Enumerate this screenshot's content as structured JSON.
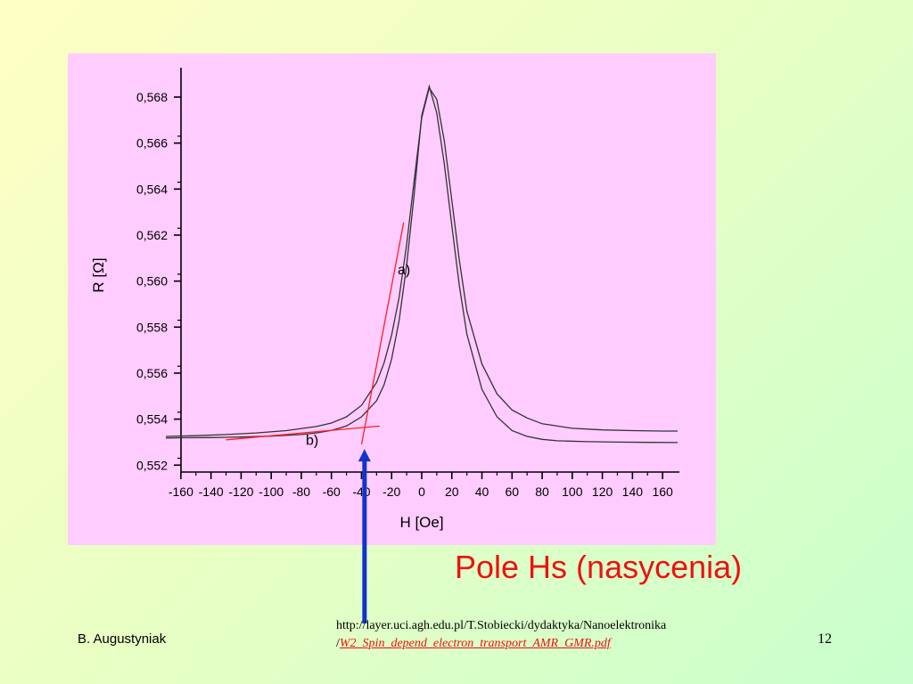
{
  "colors": {
    "panel_bg": "#ffccff",
    "curve": "#333333",
    "fit": "#ff2020",
    "arrow": "#1133cc",
    "title": "#ee1111"
  },
  "chart_data": {
    "type": "line",
    "xlabel": "H [Oe]",
    "ylabel": "R [Ω]",
    "xlim": [
      -170,
      170
    ],
    "ylim": [
      0.5517,
      0.5692
    ],
    "x_ticks": [
      "-160",
      "-140",
      "-120",
      "-100",
      "-80",
      "-60",
      "-40",
      "-20",
      "0",
      "20",
      "40",
      "60",
      "80",
      "100",
      "120",
      "140",
      "160"
    ],
    "y_ticks": [
      "0,552",
      "0,554",
      "0,556",
      "0,558",
      "0,560",
      "0,562",
      "0,564",
      "0,566",
      "0,568"
    ],
    "series": [
      {
        "x": [
          -170,
          -150,
          -130,
          -110,
          -90,
          -70,
          -60,
          -50,
          -40,
          -30,
          -25,
          -20,
          -15,
          -10,
          -5,
          0,
          5,
          10,
          15,
          20,
          25,
          30,
          40,
          50,
          60,
          70,
          80,
          100,
          120,
          140,
          160,
          170
        ],
        "y": [
          0.55325,
          0.55328,
          0.55333,
          0.5534,
          0.5535,
          0.55368,
          0.55383,
          0.5541,
          0.5546,
          0.5556,
          0.55645,
          0.55765,
          0.5593,
          0.5616,
          0.5644,
          0.5671,
          0.5684,
          0.5679,
          0.5661,
          0.5635,
          0.5609,
          0.5587,
          0.5564,
          0.5551,
          0.5544,
          0.55405,
          0.5538,
          0.5536,
          0.55353,
          0.5535,
          0.55348,
          0.55348
        ]
      },
      {
        "x": [
          -170,
          -160,
          -140,
          -120,
          -100,
          -80,
          -70,
          -60,
          -50,
          -40,
          -30,
          -25,
          -20,
          -15,
          -10,
          -5,
          0,
          5,
          10,
          15,
          20,
          25,
          30,
          40,
          50,
          60,
          70,
          80,
          90,
          110,
          130,
          150,
          170
        ],
        "y": [
          0.55318,
          0.55319,
          0.5532,
          0.55322,
          0.55326,
          0.55333,
          0.5534,
          0.55351,
          0.5537,
          0.5541,
          0.5548,
          0.5555,
          0.5566,
          0.5583,
          0.5607,
          0.5638,
          0.5672,
          0.56847,
          0.5673,
          0.5651,
          0.5624,
          0.5598,
          0.5577,
          0.5553,
          0.5541,
          0.5535,
          0.55325,
          0.55312,
          0.55306,
          0.55302,
          0.553,
          0.55299,
          0.55298
        ]
      }
    ],
    "fits": [
      {
        "x": [
          -40,
          -12
        ],
        "y": [
          0.5529,
          0.56255
        ]
      },
      {
        "x": [
          -130,
          -28
        ],
        "y": [
          0.5531,
          0.5537
        ]
      }
    ],
    "annotations": [
      {
        "text": "a)",
        "x": -16,
        "y": 0.5603
      },
      {
        "text": "b)",
        "x": -77,
        "y": 0.55288
      }
    ],
    "arrow": {
      "x": -38,
      "y_tip": 0.5527
    }
  },
  "slide": {
    "title": "Pole Hs (nasycenia)",
    "author": "B. Augustyniak",
    "source_line1": "http://layer.uci.agh.edu.pl/T.Stobiecki/dydaktyka/Nanoelektronika",
    "source_prefix": "/",
    "source_link": "W2_Spin_depend_electron_transport_AMR_GMR.pdf",
    "page_number": "12"
  }
}
